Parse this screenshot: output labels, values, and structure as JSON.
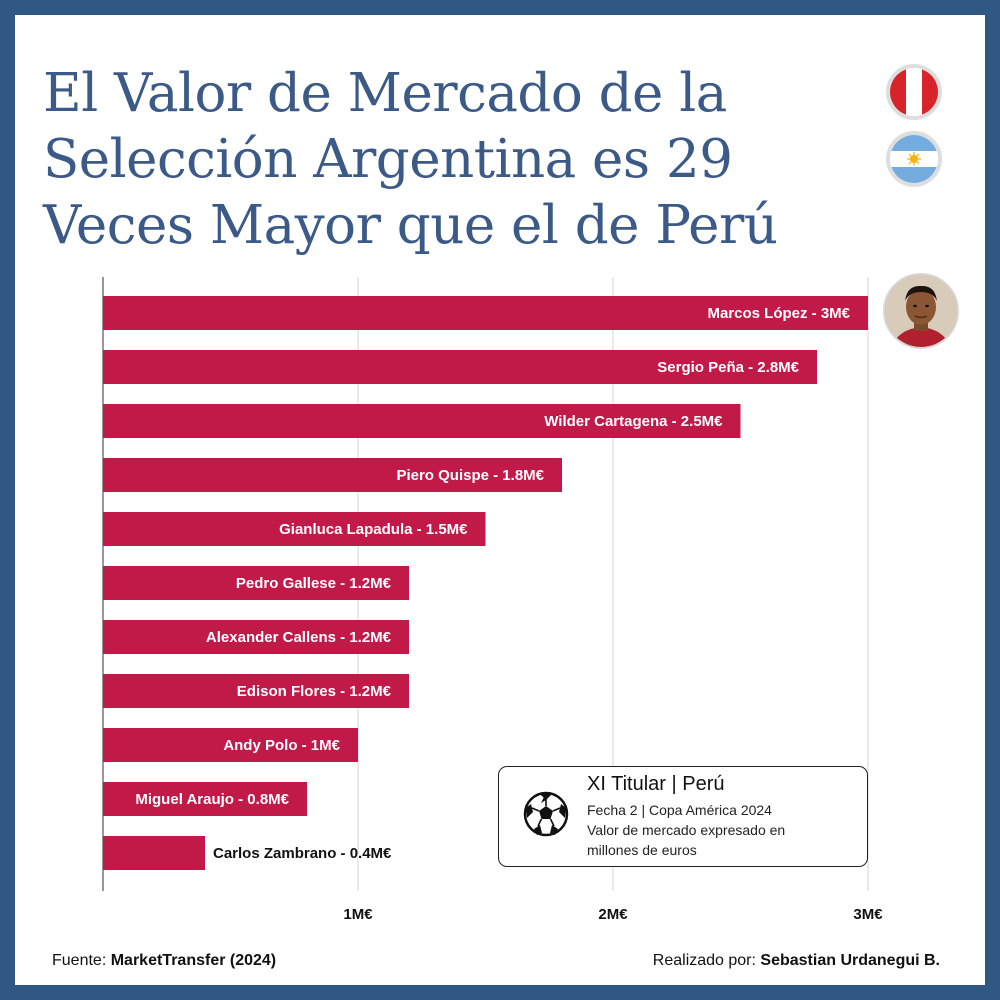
{
  "title": "El Valor de Mercado de la Selección Argentina es 29 Veces Mayor que el de Perú",
  "colors": {
    "bar": "#c21a48",
    "title": "#3c5a87",
    "frame": "#2f5885"
  },
  "icons": {
    "flag_top": "peru-flag-icon",
    "flag_bottom": "argentina-flag-icon",
    "avatar": "player-avatar",
    "ball": "soccer-ball-icon"
  },
  "chart_data": {
    "type": "bar",
    "orientation": "horizontal",
    "title": "",
    "xlabel": "",
    "ylabel": "",
    "xlim": [
      0,
      3
    ],
    "grid": true,
    "categories": [
      "Marcos López",
      "Sergio Peña",
      "Wilder Cartagena",
      "Piero Quispe",
      "Gianluca Lapadula",
      "Pedro Gallese",
      "Alexander Callens",
      "Edison Flores",
      "Andy Polo",
      "Miguel Araujo",
      "Carlos Zambrano"
    ],
    "values": [
      3,
      2.8,
      2.5,
      1.8,
      1.5,
      1.2,
      1.2,
      1.2,
      1,
      0.8,
      0.4
    ],
    "labels": [
      "Marcos López - 3M€",
      "Sergio Peña - 2.8M€",
      "Wilder Cartagena - 2.5M€",
      "Piero Quispe - 1.8M€",
      "Gianluca Lapadula - 1.5M€",
      "Pedro Gallese - 1.2M€",
      "Alexander Callens - 1.2M€",
      "Edison Flores - 1.2M€",
      "Andy Polo - 1M€",
      "Miguel Araujo - 0.8M€",
      "Carlos Zambrano - 0.4M€"
    ],
    "ticks": [
      1,
      2,
      3
    ],
    "tick_labels": [
      "1M€",
      "2M€",
      "3M€"
    ]
  },
  "infobox": {
    "title": "XI Titular | Perú",
    "line1": "Fecha 2 | Copa América 2024",
    "line2": "Valor de mercado expresado en",
    "line3": "millones de euros"
  },
  "footer": {
    "source_label": "Fuente:",
    "source_value": "MarketTransfer (2024)",
    "credit_label": "Realizado por:",
    "credit_value": "Sebastian Urdanegui B."
  }
}
